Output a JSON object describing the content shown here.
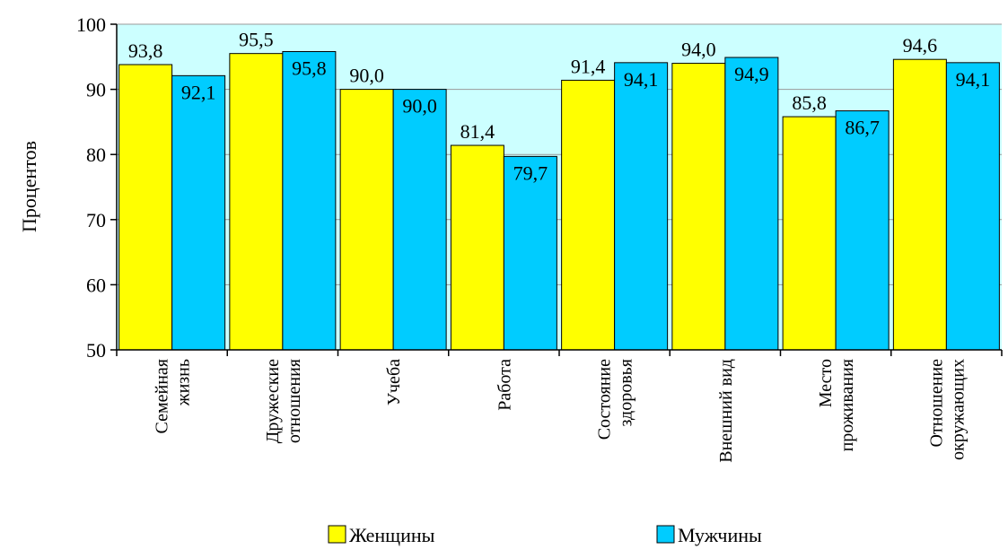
{
  "chart_data": {
    "type": "bar",
    "ylabel": "Процентов",
    "xlabel": "",
    "ylim": [
      50,
      100
    ],
    "yticks": [
      50,
      60,
      70,
      80,
      90,
      100
    ],
    "grid": true,
    "legend_position": "bottom",
    "plot_background": "#ccffff",
    "categories": [
      [
        "Семейная",
        "жизнь"
      ],
      [
        "Дружеские",
        "отношения"
      ],
      [
        "Учеба"
      ],
      [
        "Работа"
      ],
      [
        "Состояние",
        "здоровья"
      ],
      [
        "Внешний вид"
      ],
      [
        "Место",
        "проживания"
      ],
      [
        "Отношение",
        "окружающих"
      ]
    ],
    "series": [
      {
        "name": "Женщины",
        "color": "#ffff00",
        "values": [
          93.8,
          95.5,
          90.0,
          81.4,
          91.4,
          94.0,
          85.8,
          94.6
        ],
        "labels": [
          "93,8",
          "95,5",
          "90,0",
          "81,4",
          "91,4",
          "94,0",
          "85,8",
          "94,6"
        ]
      },
      {
        "name": "Мужчины",
        "color": "#00ccff",
        "values": [
          92.1,
          95.8,
          90.0,
          79.7,
          94.1,
          94.9,
          86.7,
          94.1
        ],
        "labels": [
          "92,1",
          "95,8",
          "90,0",
          "79,7",
          "94,1",
          "94,9",
          "86,7",
          "94,1"
        ]
      }
    ]
  }
}
